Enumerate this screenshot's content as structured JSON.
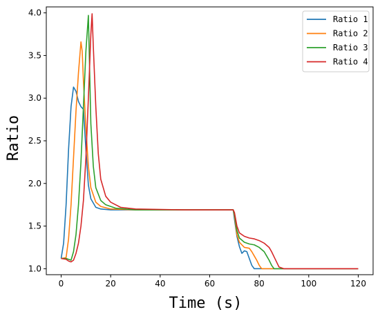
{
  "chart_data": {
    "type": "line",
    "title": "",
    "xlabel": "Time (s)",
    "ylabel": "Ratio",
    "xlim": [
      -6,
      126
    ],
    "ylim": [
      0.93,
      4.07
    ],
    "xticks": [
      0,
      20,
      40,
      60,
      80,
      100,
      120
    ],
    "yticks": [
      1.0,
      1.5,
      2.0,
      2.5,
      3.0,
      3.5,
      4.0
    ],
    "xtick_labels": [
      "0",
      "20",
      "40",
      "60",
      "80",
      "100",
      "120"
    ],
    "ytick_labels": [
      "1.0",
      "1.5",
      "2.0",
      "2.5",
      "3.0",
      "3.5",
      "4.0"
    ],
    "grid": false,
    "legend_position": "top-right",
    "series": [
      {
        "name": "Ratio 1",
        "color": "#1f77b4",
        "x": [
          0,
          1,
          2,
          3,
          4,
          5,
          6,
          7,
          8,
          9,
          10,
          11,
          12,
          14,
          16,
          20,
          30,
          50,
          69.5,
          70,
          71,
          72,
          73,
          74,
          75,
          76,
          77,
          78,
          80,
          90,
          120
        ],
        "y": [
          1.12,
          1.3,
          1.75,
          2.4,
          2.9,
          3.13,
          3.08,
          2.96,
          2.9,
          2.87,
          2.4,
          1.98,
          1.82,
          1.72,
          1.7,
          1.69,
          1.69,
          1.69,
          1.69,
          1.58,
          1.38,
          1.26,
          1.18,
          1.21,
          1.2,
          1.12,
          1.04,
          1.0,
          1.0,
          1.0,
          1.0
        ]
      },
      {
        "name": "Ratio 2",
        "color": "#ff7f0e",
        "x": [
          0,
          2,
          3,
          4,
          5,
          6,
          7,
          8,
          8.5,
          9,
          10,
          11,
          12,
          14,
          16,
          20,
          30,
          50,
          69.5,
          70,
          71,
          72,
          74,
          76,
          77,
          78,
          79,
          80,
          81,
          82,
          90,
          120
        ],
        "y": [
          1.12,
          1.13,
          1.35,
          1.75,
          2.3,
          2.85,
          3.3,
          3.66,
          3.55,
          3.2,
          2.65,
          2.2,
          1.95,
          1.78,
          1.73,
          1.7,
          1.69,
          1.69,
          1.69,
          1.62,
          1.4,
          1.31,
          1.25,
          1.24,
          1.2,
          1.15,
          1.1,
          1.04,
          1.0,
          1.0,
          1.0,
          1.0
        ]
      },
      {
        "name": "Ratio 3",
        "color": "#2ca02c",
        "x": [
          0,
          2,
          4,
          5,
          6,
          7,
          8,
          9,
          10,
          11,
          12,
          13,
          14,
          16,
          18,
          22,
          30,
          50,
          69.5,
          70,
          71,
          72,
          74,
          76,
          78,
          80,
          82,
          83,
          84,
          85,
          86,
          90,
          120
        ],
        "y": [
          1.12,
          1.12,
          1.1,
          1.2,
          1.4,
          1.75,
          2.25,
          2.9,
          3.55,
          3.97,
          2.7,
          2.2,
          1.95,
          1.8,
          1.75,
          1.71,
          1.69,
          1.69,
          1.69,
          1.64,
          1.45,
          1.36,
          1.31,
          1.29,
          1.28,
          1.25,
          1.2,
          1.15,
          1.1,
          1.04,
          1.0,
          1.0,
          1.0
        ]
      },
      {
        "name": "Ratio 4",
        "color": "#d62728",
        "x": [
          0,
          2,
          3,
          4,
          5,
          6,
          7,
          8,
          9,
          10,
          11,
          12,
          12.5,
          13,
          14,
          15,
          16,
          18,
          20,
          24,
          30,
          50,
          69.5,
          70,
          71,
          72,
          74,
          76,
          78,
          80,
          82,
          84,
          85,
          86,
          87,
          88,
          90,
          120
        ],
        "y": [
          1.12,
          1.11,
          1.09,
          1.08,
          1.1,
          1.18,
          1.3,
          1.5,
          1.8,
          2.3,
          3.0,
          3.75,
          3.99,
          3.6,
          2.9,
          2.35,
          2.05,
          1.85,
          1.78,
          1.72,
          1.7,
          1.69,
          1.69,
          1.66,
          1.5,
          1.42,
          1.38,
          1.36,
          1.35,
          1.33,
          1.3,
          1.25,
          1.2,
          1.14,
          1.08,
          1.02,
          1.0,
          1.0
        ]
      }
    ]
  }
}
